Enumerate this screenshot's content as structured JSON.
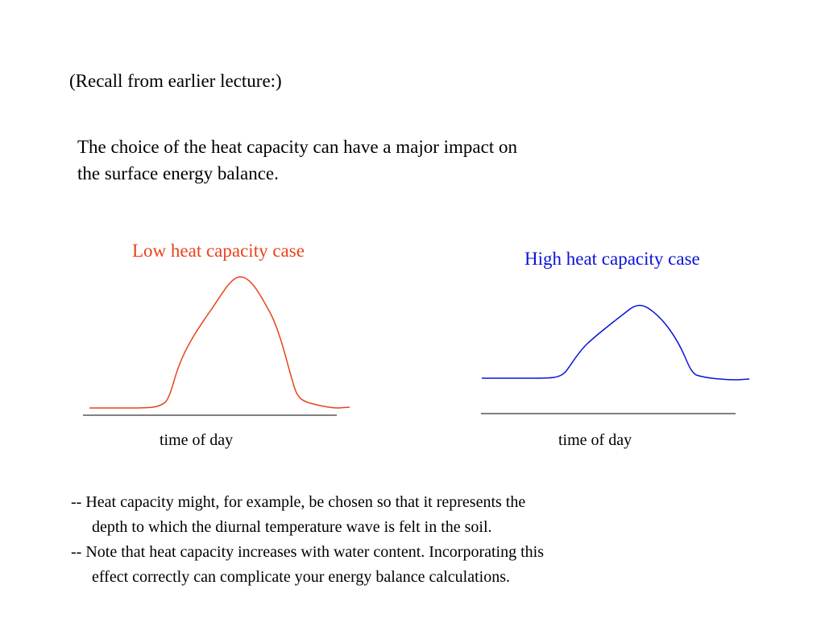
{
  "slide": {
    "recall": "(Recall from earlier lecture:)",
    "intro_line1": "The choice of the heat capacity can have a major impact on",
    "intro_line2": "the surface energy balance.",
    "low_case": {
      "title": "Low heat capacity case",
      "axis_label": "time of day",
      "color": "#e8431c"
    },
    "high_case": {
      "title": "High heat capacity case",
      "axis_label": "time of day",
      "color": "#0a14d6"
    },
    "bullet1_line1": "-- Heat capacity might, for example, be chosen so that it represents the",
    "bullet1_line2": "depth to which the diurnal temperature wave is felt in the soil.",
    "bullet2_line1": "-- Note that heat capacity increases with water content.  Incorporating this",
    "bullet2_line2": "effect correctly can complicate your energy balance calculations."
  }
}
